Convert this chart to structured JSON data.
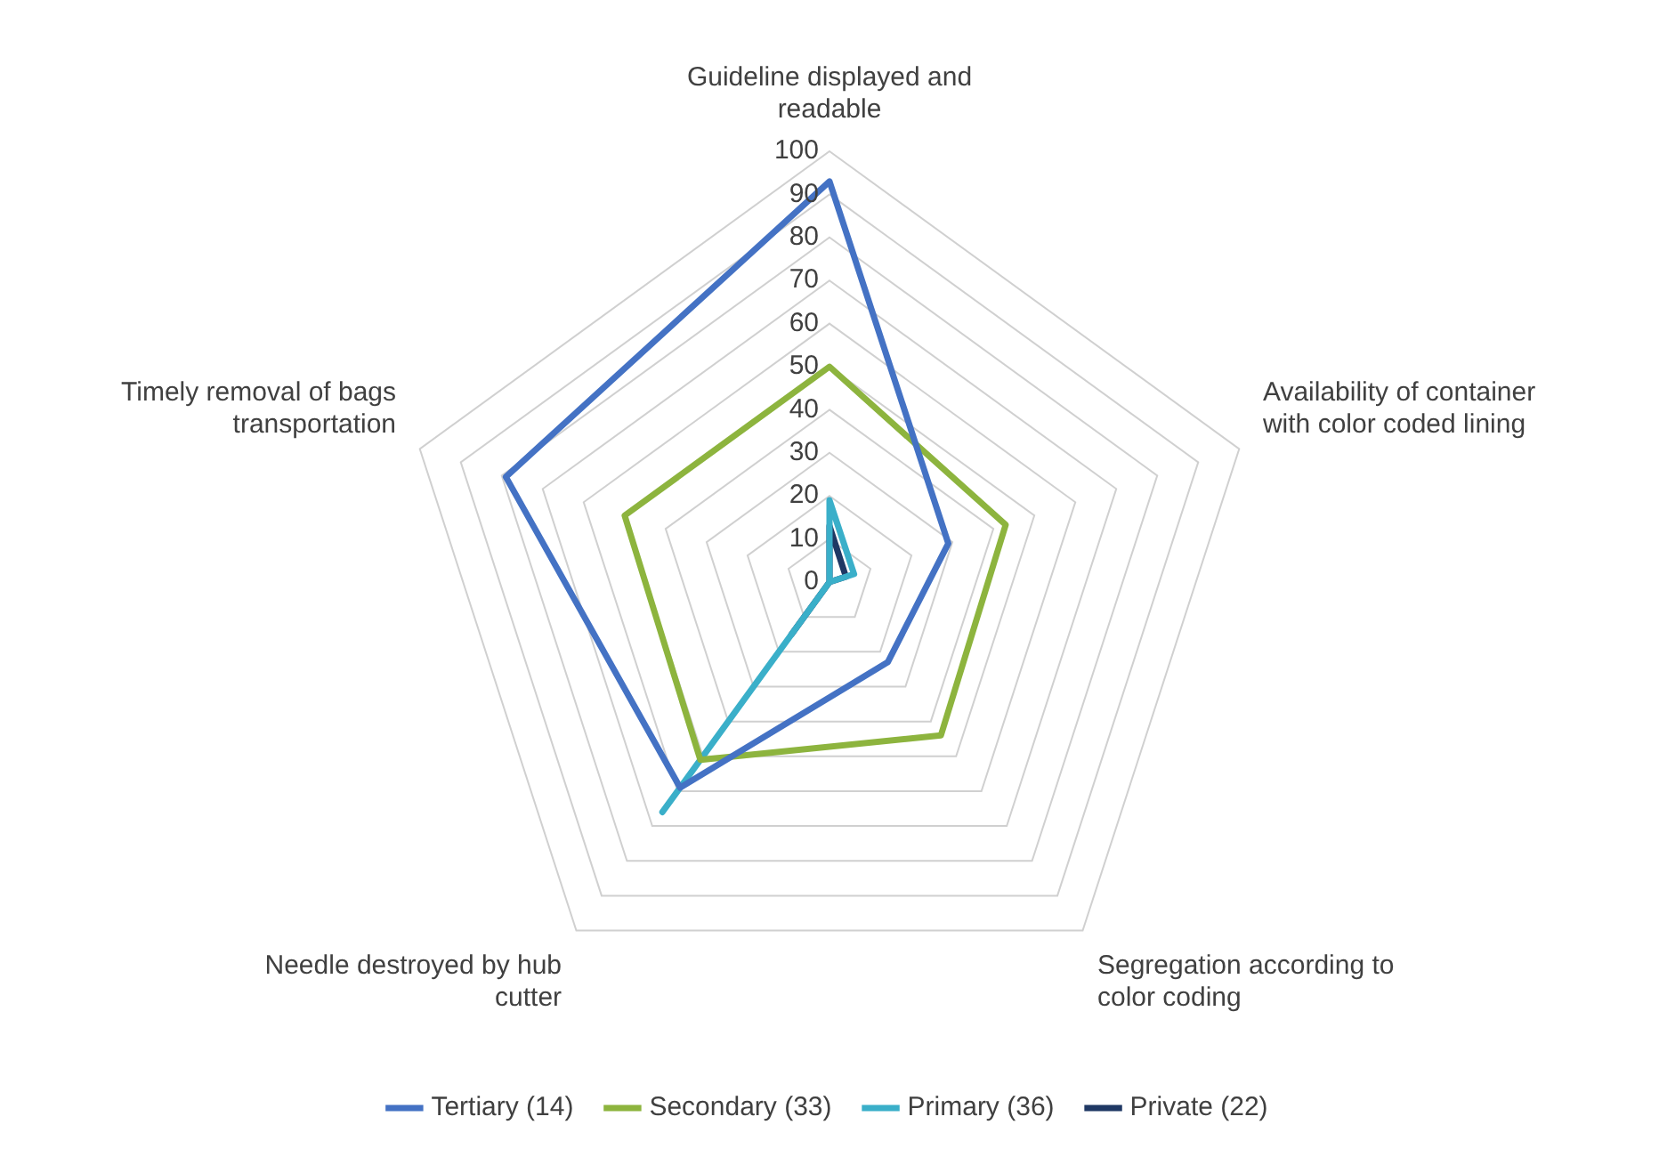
{
  "chart_data": {
    "type": "radar",
    "categories": [
      "Guideline displayed and readable",
      "Availability of container with color coded lining",
      "Segregation according to color coding",
      "Needle destroyed by hub cutter",
      "Timely removal of bags transportation"
    ],
    "series": [
      {
        "name": "Tertiary (14)",
        "color": "#4472c4",
        "values": [
          93,
          29,
          23,
          59,
          79
        ]
      },
      {
        "name": "Secondary (33)",
        "color": "#8db43e",
        "values": [
          50,
          43,
          44,
          51,
          50
        ]
      },
      {
        "name": "Primary (36)",
        "color": "#3aafc9",
        "values": [
          19,
          6,
          0,
          66,
          0
        ]
      },
      {
        "name": "Private (22)",
        "color": "#1f3864",
        "values": [
          13,
          4,
          0,
          15,
          0
        ]
      }
    ],
    "ylim": [
      0,
      100
    ],
    "yticks": [
      0,
      10,
      20,
      30,
      40,
      50,
      60,
      70,
      80,
      90,
      100
    ],
    "grid": true,
    "legend": "bottom",
    "marker": "none"
  }
}
